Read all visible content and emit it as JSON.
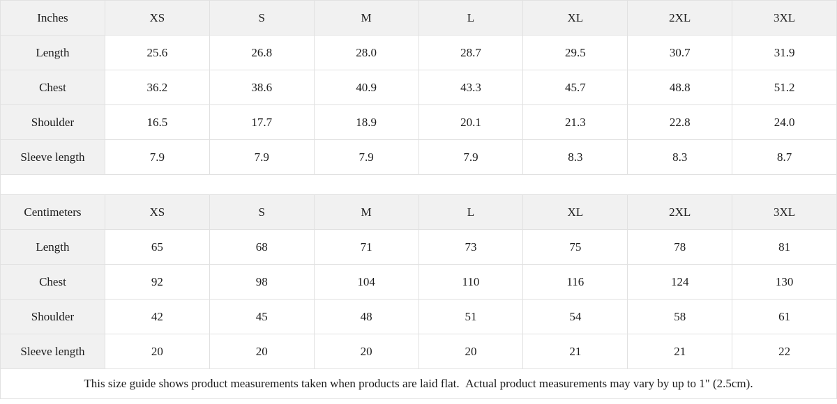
{
  "theme": {
    "header_background": "#f1f1f1",
    "cell_background": "#ffffff",
    "border_color": "#e1e1e1",
    "text_color": "#1c1c1c"
  },
  "size_guide": {
    "tables": [
      {
        "unit_label": "Inches",
        "sizes": [
          "XS",
          "S",
          "M",
          "L",
          "XL",
          "2XL",
          "3XL"
        ],
        "rows": [
          {
            "label": "Length",
            "values": [
              "25.6",
              "26.8",
              "28.0",
              "28.7",
              "29.5",
              "30.7",
              "31.9"
            ]
          },
          {
            "label": "Chest",
            "values": [
              "36.2",
              "38.6",
              "40.9",
              "43.3",
              "45.7",
              "48.8",
              "51.2"
            ]
          },
          {
            "label": "Shoulder",
            "values": [
              "16.5",
              "17.7",
              "18.9",
              "20.1",
              "21.3",
              "22.8",
              "24.0"
            ]
          },
          {
            "label": "Sleeve length",
            "values": [
              "7.9",
              "7.9",
              "7.9",
              "7.9",
              "8.3",
              "8.3",
              "8.7"
            ]
          }
        ]
      },
      {
        "unit_label": "Centimeters",
        "sizes": [
          "XS",
          "S",
          "M",
          "L",
          "XL",
          "2XL",
          "3XL"
        ],
        "rows": [
          {
            "label": "Length",
            "values": [
              "65",
              "68",
              "71",
              "73",
              "75",
              "78",
              "81"
            ]
          },
          {
            "label": "Chest",
            "values": [
              "92",
              "98",
              "104",
              "110",
              "116",
              "124",
              "130"
            ]
          },
          {
            "label": "Shoulder",
            "values": [
              "42",
              "45",
              "48",
              "51",
              "54",
              "58",
              "61"
            ]
          },
          {
            "label": "Sleeve length",
            "values": [
              "20",
              "20",
              "20",
              "20",
              "21",
              "21",
              "22"
            ]
          }
        ]
      }
    ],
    "footnote": "This size guide shows product measurements taken when products are laid flat.  Actual product measurements may vary by up to 1\" (2.5cm)."
  }
}
